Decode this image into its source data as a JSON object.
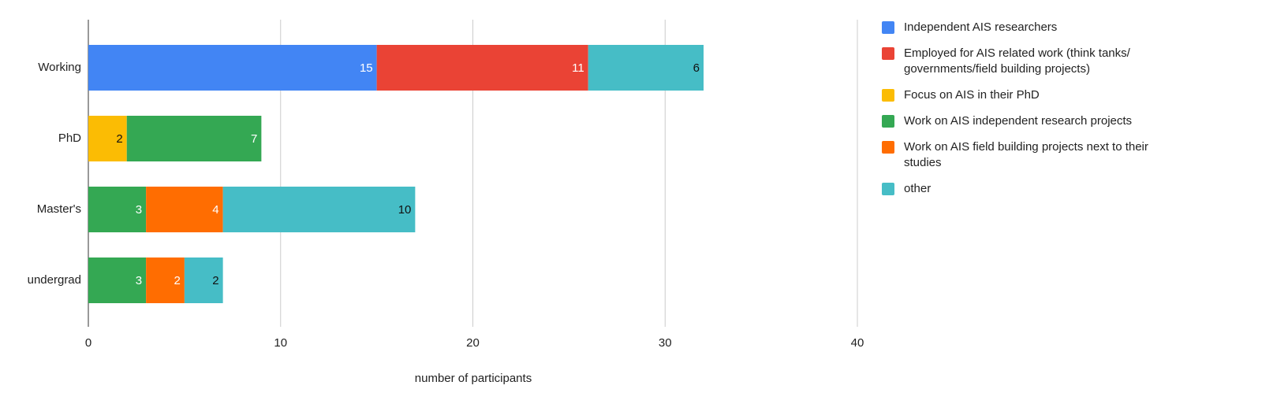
{
  "chart_data": {
    "type": "stacked-bar-horizontal",
    "x_label": "number of participants",
    "categories": [
      "Working",
      "PhD",
      "Master's",
      "undergrad"
    ],
    "series": [
      {
        "name": "Independent AIS researchers",
        "color": "#4285f4",
        "values": [
          15,
          null,
          null,
          null
        ]
      },
      {
        "name": "Employed for AIS related work (think tanks/ governments/field building projects)",
        "color": "#ea4335",
        "values": [
          11,
          null,
          null,
          null
        ]
      },
      {
        "name": "Focus on AIS in their PhD",
        "color": "#fbbc04",
        "values": [
          null,
          2,
          null,
          null
        ]
      },
      {
        "name": "Work on AIS independent research projects",
        "color": "#34a853",
        "values": [
          null,
          7,
          3,
          3
        ]
      },
      {
        "name": "Work on AIS field building projects next to their studies",
        "color": "#ff6d01",
        "values": [
          null,
          null,
          4,
          2
        ]
      },
      {
        "name": "other",
        "color": "#46bdc6",
        "values": [
          6,
          null,
          10,
          2
        ]
      }
    ],
    "xlim": [
      0,
      40
    ],
    "xticks": [
      0,
      10,
      20,
      30,
      40
    ],
    "grid": true,
    "legend": "right"
  }
}
